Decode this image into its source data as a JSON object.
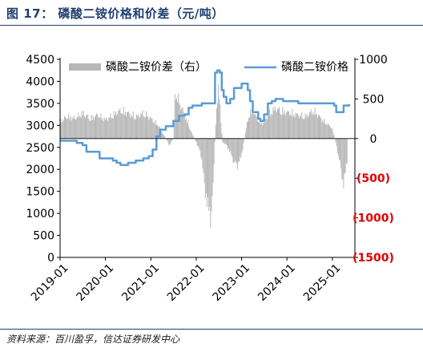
{
  "figure": {
    "title": "图 17：  磷酸二铵价格和价差（元/吨）",
    "source": "资料来源：百川盈孚，信达证券研发中心"
  },
  "chart_data": {
    "type": "bar+line",
    "x_ticks": [
      "2019-01",
      "2020-01",
      "2021-01",
      "2022-01",
      "2023-01",
      "2024-01",
      "2025-01"
    ],
    "y_left": {
      "ticks": [
        "4500",
        "4000",
        "3500",
        "3000",
        "2500",
        "2000",
        "1500",
        "1000",
        "500",
        "0"
      ],
      "range": [
        0,
        4500
      ]
    },
    "y_right": {
      "ticks": [
        "1000",
        "500",
        "0",
        "(500)",
        "(1000)",
        "(1500)"
      ],
      "range": [
        -1500,
        1000
      ],
      "negative_color": "#e00000"
    },
    "legend": [
      "磷酸二铵价差（右）",
      "磷酸二铵价格"
    ],
    "colors": {
      "spread": "#b7b7b7",
      "price": "#5b9bd5",
      "axis": "#000000"
    },
    "series": [
      {
        "name": "磷酸二铵价格",
        "axis": "left",
        "type": "line",
        "points": [
          [
            "2019-01-01",
            2650
          ],
          [
            "2019-04-01",
            2650
          ],
          [
            "2019-05-15",
            2600
          ],
          [
            "2019-07-01",
            2550
          ],
          [
            "2019-08-01",
            2400
          ],
          [
            "2019-10-01",
            2400
          ],
          [
            "2019-11-15",
            2250
          ],
          [
            "2020-02-01",
            2250
          ],
          [
            "2020-03-01",
            2200
          ],
          [
            "2020-04-01",
            2150
          ],
          [
            "2020-05-01",
            2100
          ],
          [
            "2020-07-01",
            2150
          ],
          [
            "2020-09-01",
            2200
          ],
          [
            "2020-11-01",
            2250
          ],
          [
            "2020-12-15",
            2300
          ],
          [
            "2021-01-15",
            2450
          ],
          [
            "2021-02-15",
            2750
          ],
          [
            "2021-03-15",
            2900
          ],
          [
            "2021-05-01",
            2980
          ],
          [
            "2021-07-01",
            3100
          ],
          [
            "2021-08-15",
            3220
          ],
          [
            "2021-10-01",
            3250
          ],
          [
            "2021-11-01",
            3400
          ],
          [
            "2021-12-01",
            3450
          ],
          [
            "2022-02-01",
            3450
          ],
          [
            "2022-02-15",
            3500
          ],
          [
            "2022-04-01",
            3500
          ],
          [
            "2022-05-15",
            3500
          ],
          [
            "2022-06-01",
            4200
          ],
          [
            "2022-06-20",
            4250
          ],
          [
            "2022-07-10",
            4200
          ],
          [
            "2022-07-25",
            3800
          ],
          [
            "2022-08-10",
            3650
          ],
          [
            "2022-09-01",
            3500
          ],
          [
            "2022-10-01",
            3600
          ],
          [
            "2022-11-01",
            3850
          ],
          [
            "2023-01-01",
            3950
          ],
          [
            "2023-02-01",
            3950
          ],
          [
            "2023-02-20",
            3800
          ],
          [
            "2023-03-10",
            3550
          ],
          [
            "2023-04-01",
            3300
          ],
          [
            "2023-05-15",
            3150
          ],
          [
            "2023-06-01",
            3100
          ],
          [
            "2023-07-01",
            3250
          ],
          [
            "2023-08-01",
            3500
          ],
          [
            "2023-09-01",
            3550
          ],
          [
            "2023-10-01",
            3600
          ],
          [
            "2023-12-01",
            3550
          ],
          [
            "2024-02-01",
            3550
          ],
          [
            "2024-04-01",
            3500
          ],
          [
            "2024-06-01",
            3500
          ],
          [
            "2024-08-01",
            3500
          ],
          [
            "2024-10-01",
            3500
          ],
          [
            "2024-12-01",
            3500
          ],
          [
            "2025-01-15",
            3450
          ],
          [
            "2025-02-01",
            3300
          ],
          [
            "2025-03-15",
            3300
          ],
          [
            "2025-04-01",
            3450
          ],
          [
            "2025-05-15",
            3480
          ]
        ]
      },
      {
        "name": "磷酸二铵价差（右）",
        "axis": "right",
        "type": "bar",
        "points": [
          [
            "2019-01-01",
            250
          ],
          [
            "2019-03-01",
            330
          ],
          [
            "2019-05-01",
            300
          ],
          [
            "2019-07-01",
            380
          ],
          [
            "2019-09-01",
            300
          ],
          [
            "2019-11-01",
            350
          ],
          [
            "2020-01-01",
            280
          ],
          [
            "2020-03-01",
            350
          ],
          [
            "2020-05-01",
            420
          ],
          [
            "2020-07-01",
            380
          ],
          [
            "2020-09-01",
            320
          ],
          [
            "2020-11-01",
            380
          ],
          [
            "2021-01-01",
            300
          ],
          [
            "2021-03-01",
            200
          ],
          [
            "2021-04-01",
            100
          ],
          [
            "2021-05-01",
            0
          ],
          [
            "2021-06-01",
            -100
          ],
          [
            "2021-07-01",
            0
          ],
          [
            "2021-07-15",
            700
          ],
          [
            "2021-08-15",
            550
          ],
          [
            "2021-10-01",
            350
          ],
          [
            "2021-11-01",
            200
          ],
          [
            "2021-12-01",
            60
          ],
          [
            "2022-01-01",
            -50
          ],
          [
            "2022-02-01",
            -200
          ],
          [
            "2022-02-15",
            -300
          ],
          [
            "2022-03-01",
            -600
          ],
          [
            "2022-04-01",
            -1000
          ],
          [
            "2022-05-01",
            -1180
          ],
          [
            "2022-05-15",
            -800
          ],
          [
            "2022-06-01",
            0
          ],
          [
            "2022-06-15",
            500
          ],
          [
            "2022-07-01",
            800
          ],
          [
            "2022-07-15",
            350
          ],
          [
            "2022-08-01",
            -50
          ],
          [
            "2022-09-01",
            -100
          ],
          [
            "2022-10-01",
            -200
          ],
          [
            "2022-11-01",
            -350
          ],
          [
            "2022-12-01",
            -400
          ],
          [
            "2023-01-01",
            -250
          ],
          [
            "2023-02-01",
            100
          ],
          [
            "2023-03-01",
            350
          ],
          [
            "2023-04-01",
            430
          ],
          [
            "2023-05-01",
            300
          ],
          [
            "2023-06-01",
            250
          ],
          [
            "2023-07-01",
            230
          ],
          [
            "2023-08-01",
            350
          ],
          [
            "2023-10-01",
            450
          ],
          [
            "2023-12-01",
            400
          ],
          [
            "2024-02-01",
            380
          ],
          [
            "2024-04-01",
            350
          ],
          [
            "2024-06-01",
            330
          ],
          [
            "2024-08-01",
            420
          ],
          [
            "2024-10-01",
            300
          ],
          [
            "2024-12-01",
            200
          ],
          [
            "2025-01-01",
            150
          ],
          [
            "2025-02-01",
            -100
          ],
          [
            "2025-03-01",
            -350
          ],
          [
            "2025-04-01",
            -700
          ],
          [
            "2025-05-01",
            -300
          ]
        ]
      }
    ]
  }
}
